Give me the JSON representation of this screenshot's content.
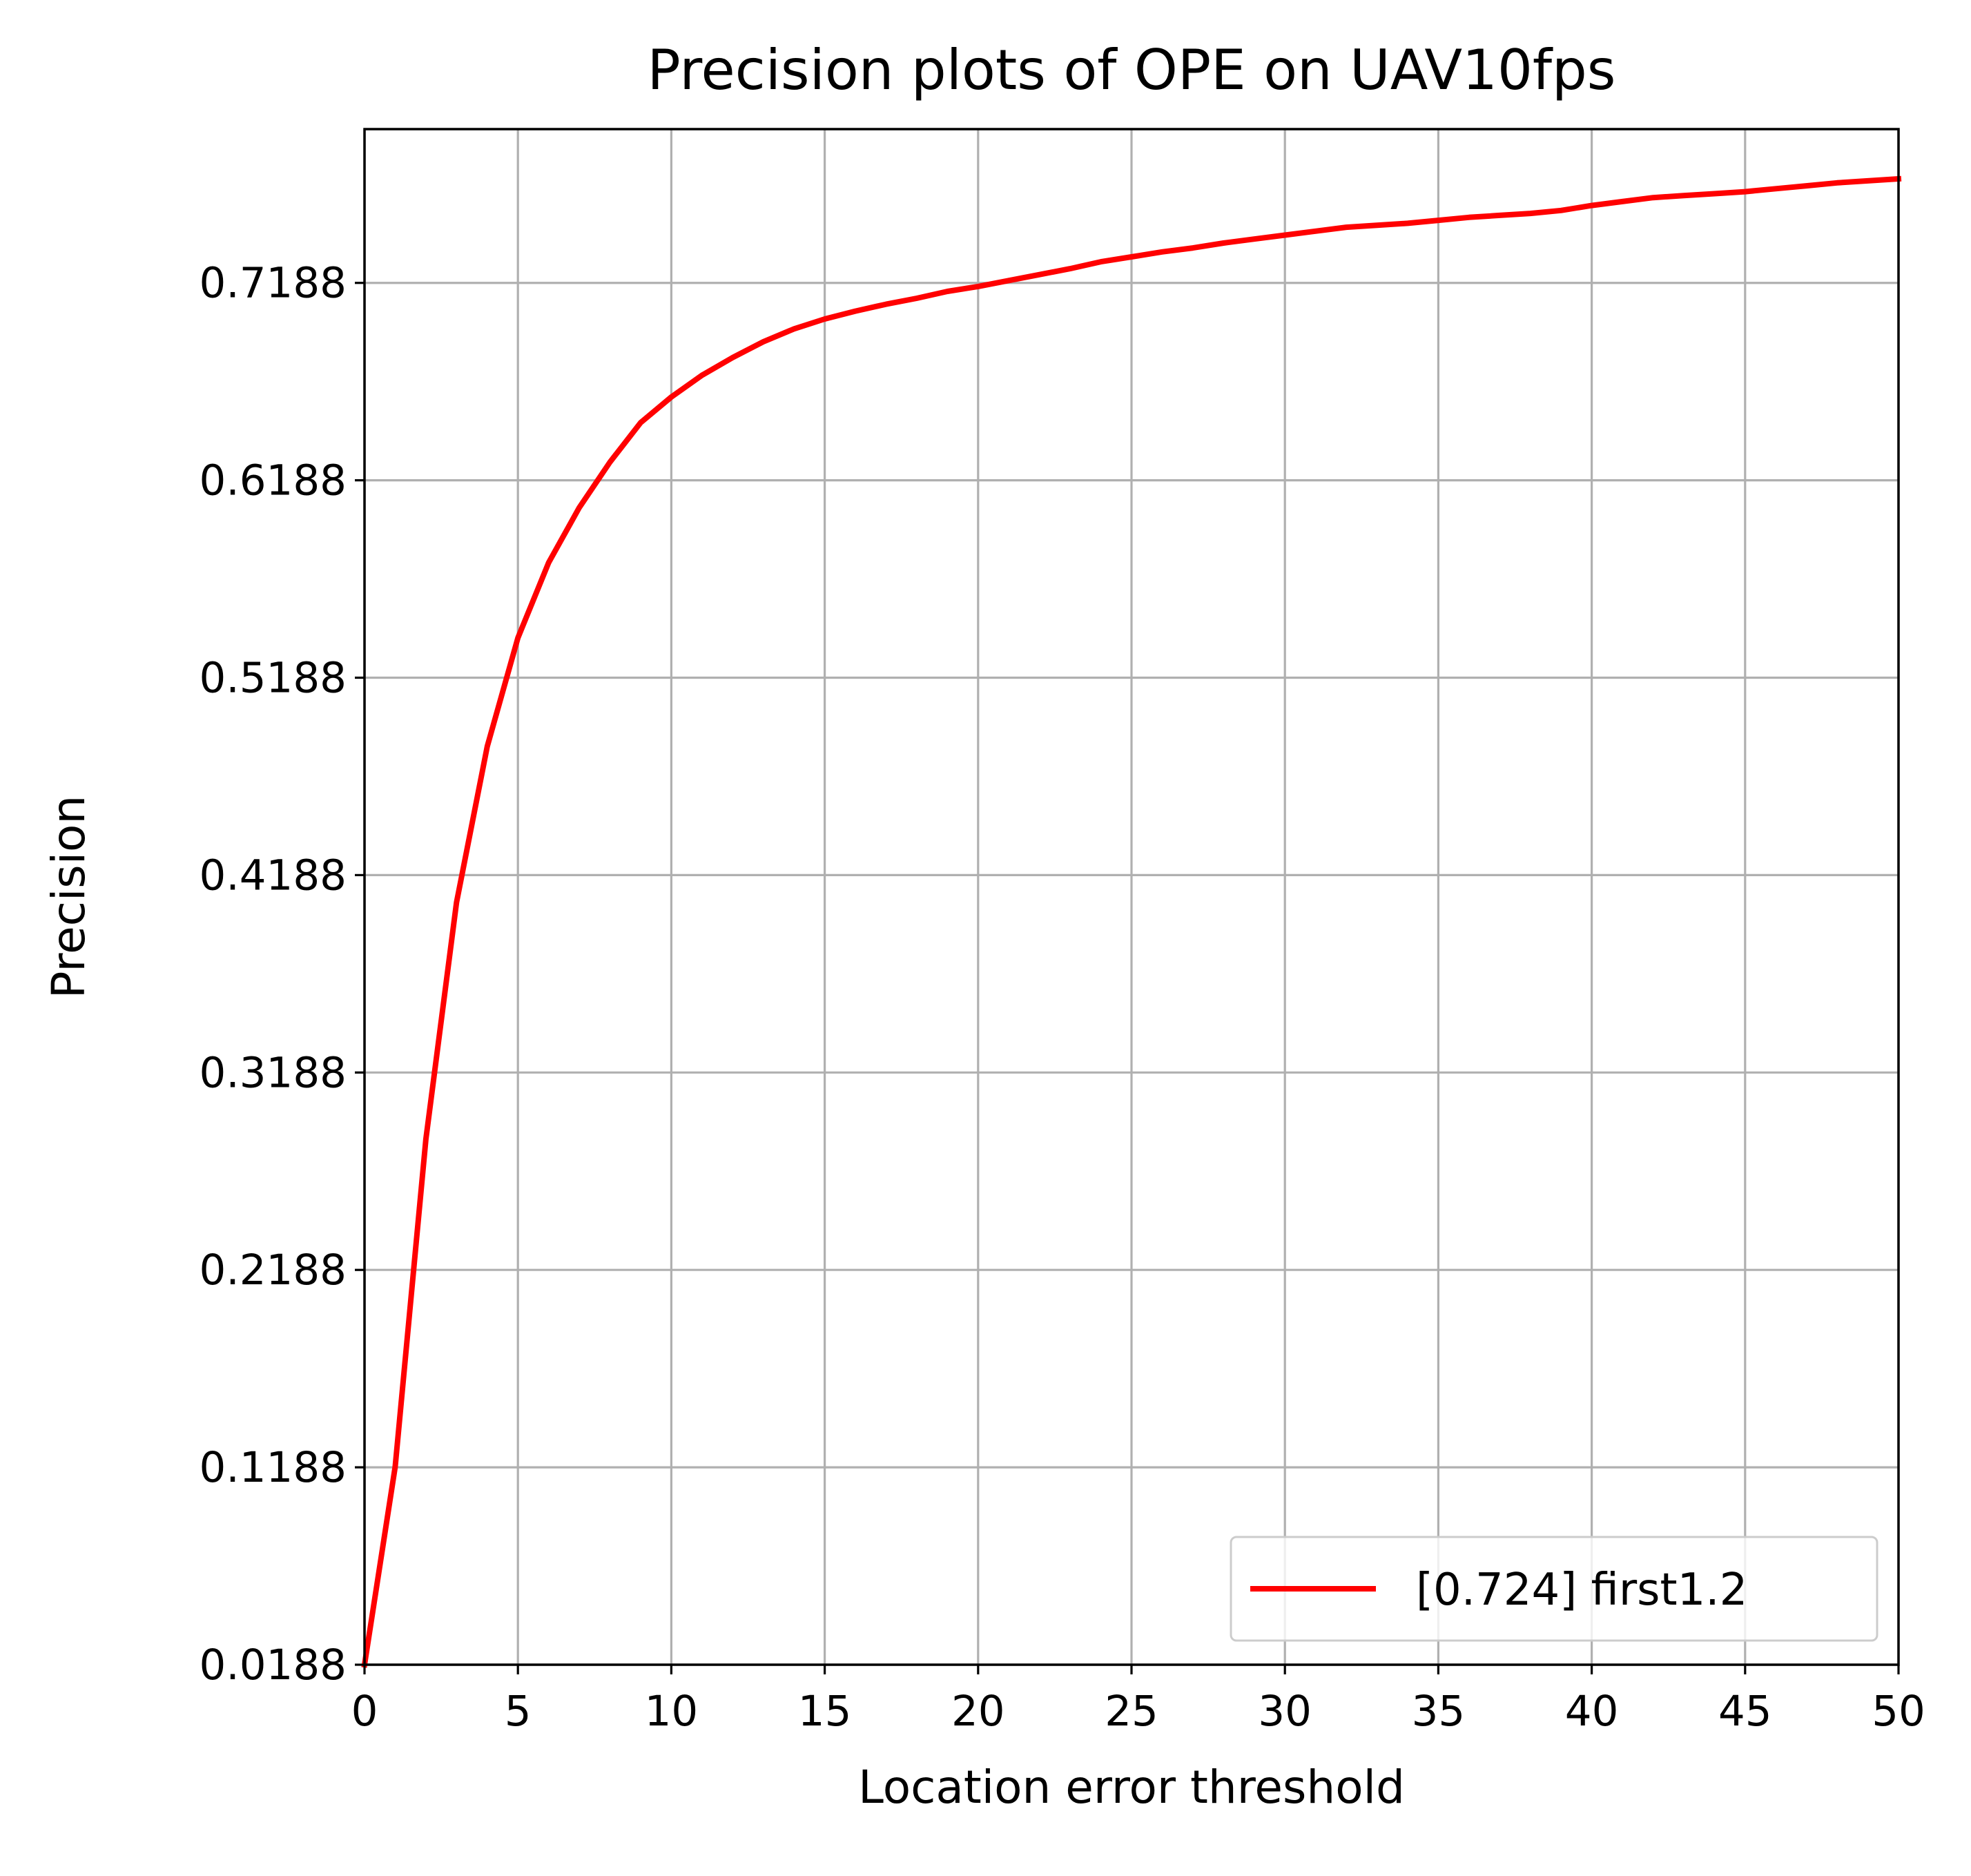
{
  "chart_data": {
    "type": "line",
    "title": "Precision plots of OPE on UAV10fps",
    "xlabel": "Location error threshold",
    "ylabel": "Precision",
    "xlim": [
      0,
      50
    ],
    "ylim": [
      0.0188,
      0.7967
    ],
    "xticks": [
      0,
      5,
      10,
      15,
      20,
      25,
      30,
      35,
      40,
      45,
      50
    ],
    "xtick_labels": [
      "0",
      "5",
      "10",
      "15",
      "20",
      "25",
      "30",
      "35",
      "40",
      "45",
      "50"
    ],
    "yticks": [
      0.0188,
      0.1188,
      0.2188,
      0.3188,
      0.4188,
      0.5188,
      0.6188,
      0.7188
    ],
    "ytick_labels": [
      "0.0188",
      "0.1188",
      "0.2188",
      "0.3188",
      "0.4188",
      "0.5188",
      "0.6188",
      "0.7188"
    ],
    "grid": true,
    "legend_position": "bottom-right",
    "series": [
      {
        "name": "[0.724] first1.2",
        "color": "#ff0000",
        "x": [
          0,
          1,
          2,
          3,
          4,
          5,
          6,
          7,
          8,
          9,
          10,
          11,
          12,
          13,
          14,
          15,
          16,
          17,
          18,
          19,
          20,
          21,
          22,
          23,
          24,
          25,
          26,
          27,
          28,
          29,
          30,
          31,
          32,
          33,
          34,
          35,
          36,
          37,
          38,
          39,
          40,
          41,
          42,
          43,
          44,
          45,
          46,
          47,
          48,
          49,
          50
        ],
        "y": [
          0.0188,
          0.119,
          0.285,
          0.405,
          0.484,
          0.539,
          0.577,
          0.605,
          0.628,
          0.648,
          0.661,
          0.672,
          0.681,
          0.689,
          0.6955,
          0.7005,
          0.7045,
          0.708,
          0.711,
          0.7145,
          0.717,
          0.72,
          0.723,
          0.726,
          0.7295,
          0.732,
          0.7345,
          0.7365,
          0.739,
          0.741,
          0.743,
          0.745,
          0.747,
          0.748,
          0.749,
          0.7505,
          0.752,
          0.753,
          0.754,
          0.7555,
          0.758,
          0.76,
          0.762,
          0.763,
          0.764,
          0.765,
          0.7665,
          0.768,
          0.7695,
          0.7705,
          0.7715
        ]
      }
    ]
  }
}
